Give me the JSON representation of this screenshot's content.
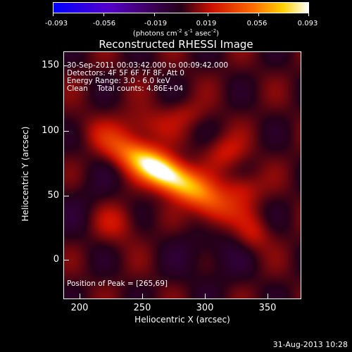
{
  "colorbar": {
    "ticks": [
      "-0.093",
      "-0.056",
      "-0.019",
      "0.019",
      "0.056",
      "0.093"
    ],
    "units": "(photons cm",
    "units_sup1": "-2",
    "units_mid": " s",
    "units_sup2": "-1",
    "units_mid2": " asec",
    "units_sup3": "-2",
    "units_end": ")"
  },
  "title": "Reconstructed RHESSI Image",
  "info": {
    "line1": "30-Sep-2011 00:03:42.000 to 00:09:42.000",
    "line2": "Detectors: 4F 5F 6F 7F 8F, Att 0",
    "line3": "Energy Range: 3.0 - 6.0 keV",
    "line4": "Clean    Total counts: 4.86E+04"
  },
  "peak_label": "Position of Peak = [265,69]",
  "axes": {
    "xlabel": "Heliocentric X (arcsec)",
    "ylabel": "Heliocentric Y (arcsec)",
    "xticks": [
      "200",
      "250",
      "300",
      "350"
    ],
    "yticks": [
      "150",
      "100",
      "50",
      "0"
    ]
  },
  "timestamp": "31-Aug-2013 10:28",
  "colors": {
    "background": "#000000",
    "colormap": [
      "#0000ff",
      "#5500c8",
      "#3a0050",
      "#250018",
      "#cc1000",
      "#ff6a00",
      "#ffd000",
      "#ffffff"
    ]
  }
}
